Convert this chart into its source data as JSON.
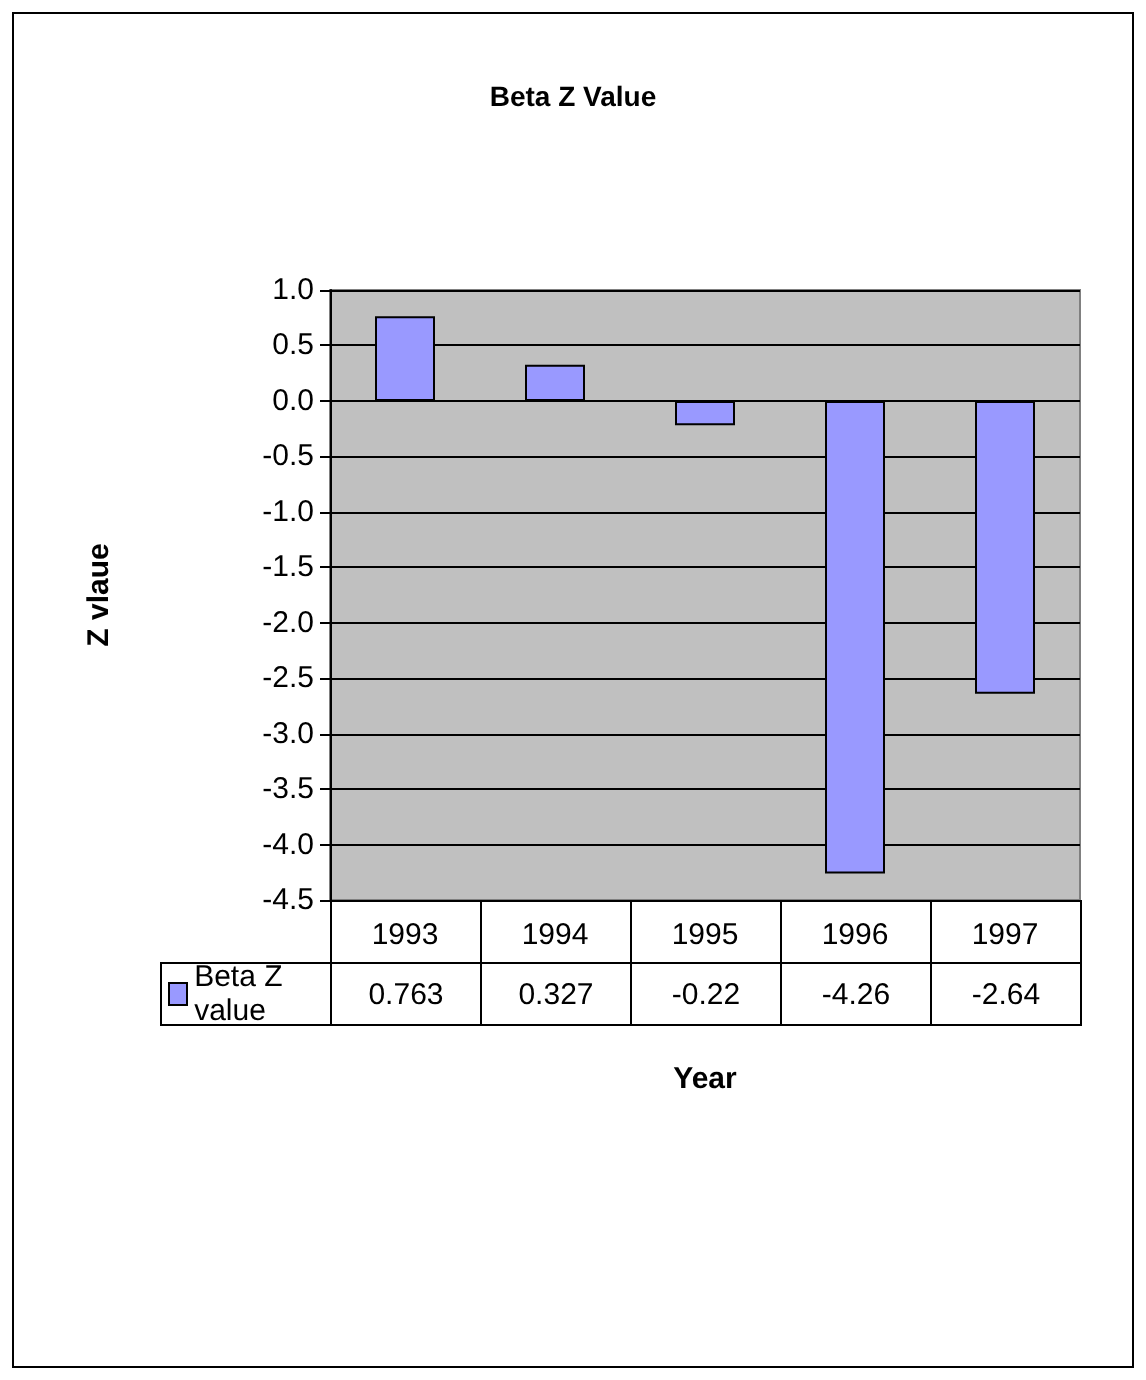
{
  "chart_data": {
    "type": "bar",
    "title": "Beta Z Value",
    "xlabel": "Year",
    "ylabel": "Z vlaue",
    "categories": [
      "1993",
      "1994",
      "1995",
      "1996",
      "1997"
    ],
    "series": [
      {
        "name": "Beta Z value",
        "color": "#9999ff",
        "values": [
          0.763,
          0.327,
          -0.22,
          -4.26,
          -2.64
        ]
      }
    ],
    "ylim": [
      -4.5,
      1.0
    ],
    "yticks": [
      {
        "value": -4.5,
        "label": "-4.5"
      },
      {
        "value": -4,
        "label": "-4.0"
      },
      {
        "value": -3.5,
        "label": "-3.5"
      },
      {
        "value": -3,
        "label": "-3.0"
      },
      {
        "value": -2.5,
        "label": "-2.5"
      },
      {
        "value": -2,
        "label": "-2.0"
      },
      {
        "value": -1.5,
        "label": "-1.5"
      },
      {
        "value": -1,
        "label": "-1.0"
      },
      {
        "value": -0.5,
        "label": "-0.5"
      },
      {
        "value": 0,
        "label": "0.0"
      },
      {
        "value": 0.5,
        "label": "0.5"
      },
      {
        "value": 1,
        "label": "1.0"
      }
    ],
    "grid": "y",
    "legend": "bottom",
    "data_labels": true
  }
}
